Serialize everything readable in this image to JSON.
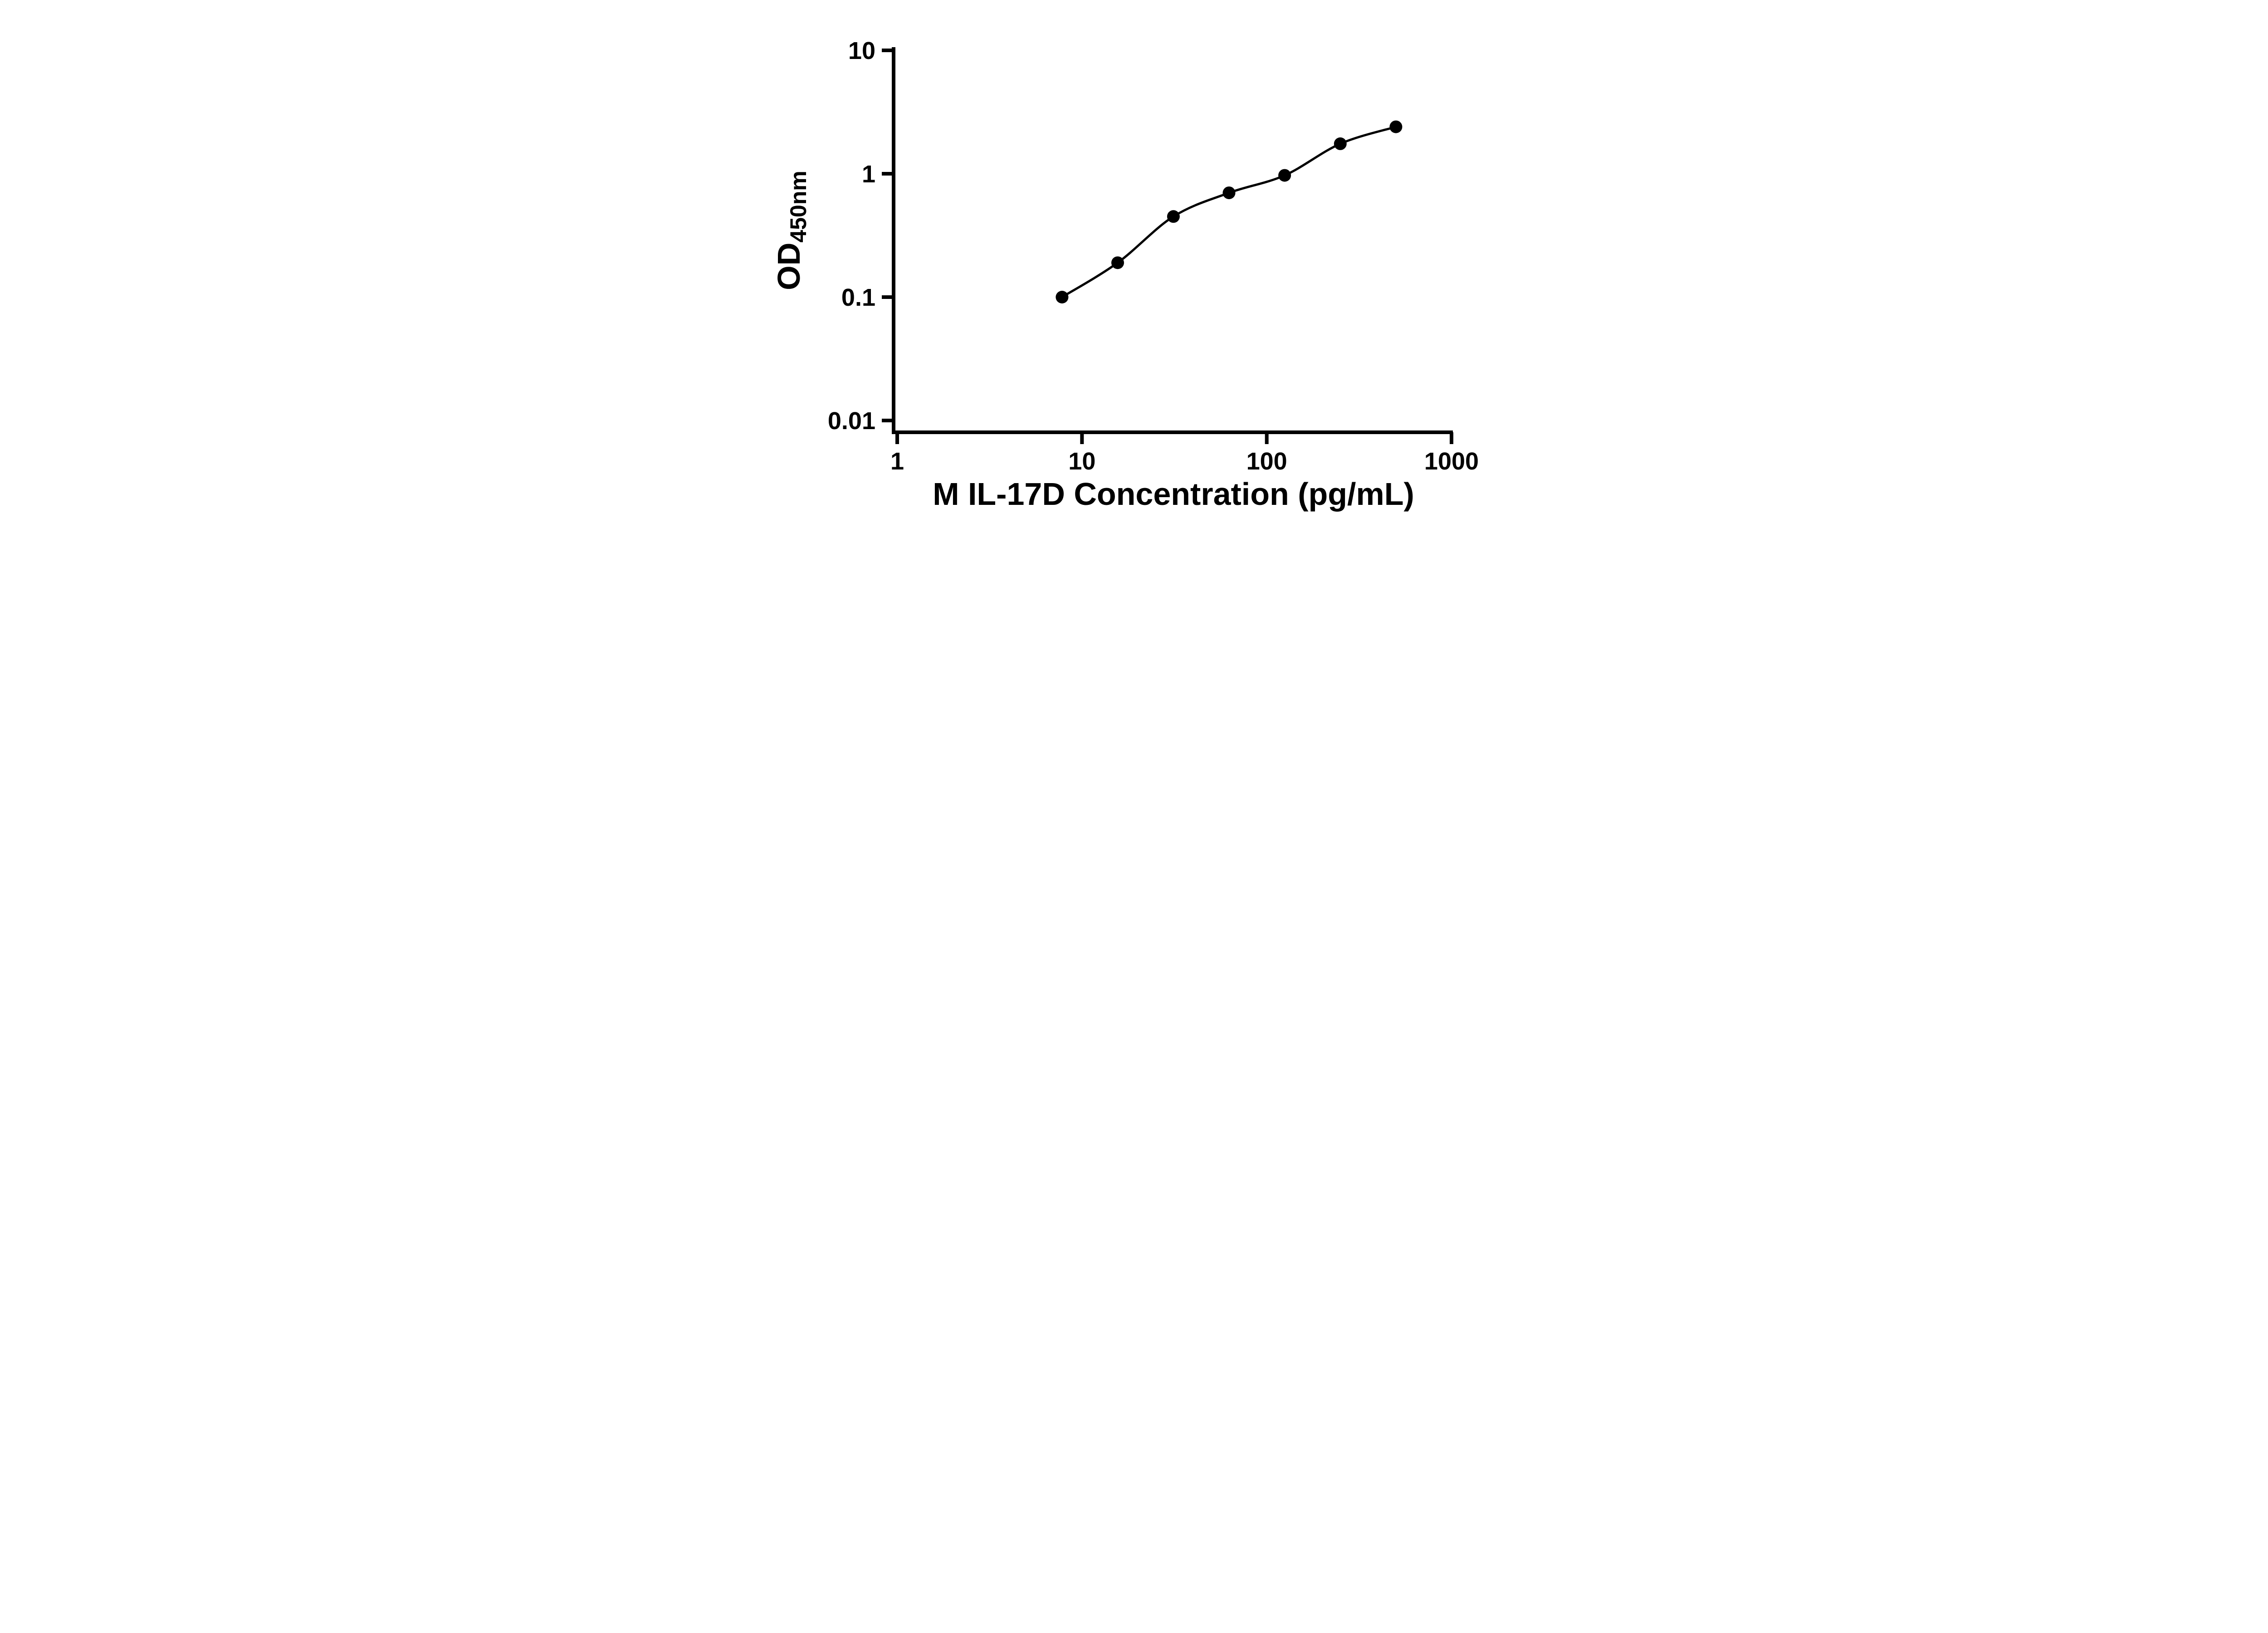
{
  "chart_data": {
    "type": "scatter",
    "title": "",
    "xlabel": "M IL-17D Concentration (pg/mL)",
    "ylabel_main": "OD",
    "ylabel_sub": "450nm",
    "x_scale": "log",
    "y_scale": "log",
    "xlim": [
      1,
      1000
    ],
    "ylim": [
      0.01,
      10
    ],
    "x_ticks": [
      1,
      10,
      100,
      1000
    ],
    "x_tick_labels": [
      "1",
      "10",
      "100",
      "1000"
    ],
    "y_ticks": [
      0.01,
      0.1,
      1,
      10
    ],
    "y_tick_labels": [
      "0.01",
      "0.1",
      "1",
      "10"
    ],
    "grid": false,
    "legend": false,
    "colors": {
      "background": "#ffffff",
      "axis": "#000000",
      "marker": "#000000",
      "curve": "#000000"
    },
    "series": [
      {
        "marker": "filled-circle",
        "fit": "smooth-curve-through-points",
        "points": [
          {
            "x": 7.8,
            "y": 0.1
          },
          {
            "x": 15.6,
            "y": 0.19
          },
          {
            "x": 31.25,
            "y": 0.45
          },
          {
            "x": 62.5,
            "y": 0.7
          },
          {
            "x": 125,
            "y": 0.97
          },
          {
            "x": 250,
            "y": 1.75
          },
          {
            "x": 500,
            "y": 2.4
          }
        ]
      }
    ]
  }
}
